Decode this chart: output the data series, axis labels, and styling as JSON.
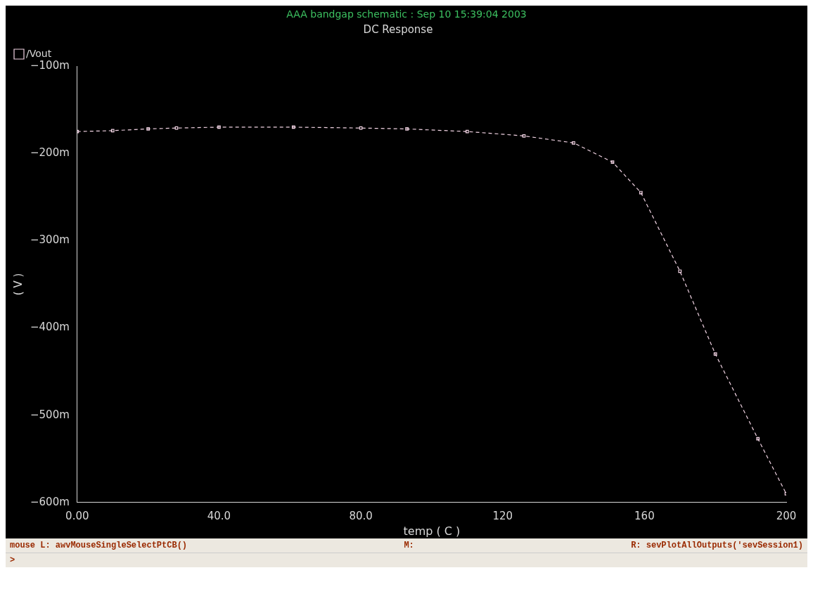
{
  "chart_data": {
    "type": "line",
    "title": "DC Response",
    "subtitle": "AAA bandgap schematic : Sep 10 15:39:04 2003",
    "xlabel": "temp ( C )",
    "ylabel": "( V )",
    "x": [
      0,
      10,
      20,
      28,
      40,
      61,
      80,
      93,
      110,
      126,
      140,
      151,
      159,
      170,
      180,
      192,
      200
    ],
    "series": [
      {
        "name": "/Vout",
        "color": "#f2d4e4",
        "values": [
          -175,
          -174,
          -172,
          -171,
          -170,
          -170,
          -171,
          -172,
          -175,
          -180,
          -188,
          -210,
          -245,
          -335,
          -430,
          -527,
          -590
        ]
      }
    ],
    "xlim": [
      0,
      200
    ],
    "xticks": [
      {
        "value": 0,
        "label": "0.00"
      },
      {
        "value": 40,
        "label": "40.0"
      },
      {
        "value": 80,
        "label": "80.0"
      },
      120,
      160,
      200
    ],
    "ylim": [
      -600,
      -100
    ],
    "yticks": [
      {
        "value": -600,
        "label": "−600m"
      },
      {
        "value": -500,
        "label": "−500m"
      },
      {
        "value": -400,
        "label": "−400m"
      },
      {
        "value": -300,
        "label": "−300m"
      },
      {
        "value": -200,
        "label": "−200m"
      },
      {
        "value": -100,
        "label": "−100m"
      }
    ],
    "grid": false,
    "legend": "top left",
    "marker": "square",
    "line_style": "dashed",
    "annotations": [
      "mouse L: awvMouseSingleSelectPtCB()",
      "M:",
      "R: sevPlotAllOutputs('sevSession1)",
      ">"
    ]
  }
}
